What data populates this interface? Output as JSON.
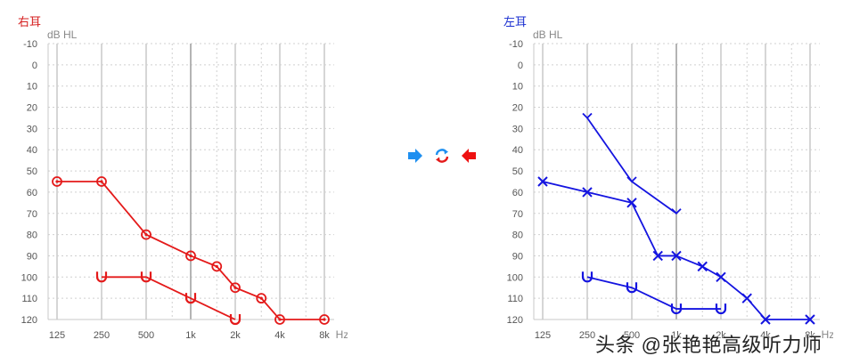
{
  "right_ear_title": "右耳",
  "left_ear_title": "左耳",
  "watermark": "头条 @张艳艳高级听力师",
  "colors": {
    "right": "#e41a1a",
    "left": "#1414e0"
  },
  "chart_data": [
    {
      "type": "line",
      "title": "右耳",
      "ylabel": "dB HL",
      "xlabel": "Hz",
      "y_inverted": true,
      "ylim": [
        -10,
        120
      ],
      "yticks": [
        -10,
        0,
        10,
        20,
        30,
        40,
        50,
        60,
        70,
        80,
        90,
        100,
        110,
        120
      ],
      "x_major": [
        "125",
        "250",
        "500",
        "1k",
        "2k",
        "4k",
        "8k"
      ],
      "x_minor_hz": [
        750,
        1500,
        3000,
        6000
      ],
      "grid": true,
      "series": [
        {
          "symbol": "circle",
          "points": [
            [
              125,
              55
            ],
            [
              250,
              55
            ],
            [
              500,
              80
            ],
            [
              1000,
              90
            ],
            [
              1500,
              95
            ],
            [
              2000,
              105
            ],
            [
              3000,
              110
            ],
            [
              4000,
              120
            ],
            [
              8000,
              120
            ]
          ]
        },
        {
          "symbol": "bone",
          "points": [
            [
              250,
              100
            ],
            [
              500,
              100
            ],
            [
              1000,
              110
            ],
            [
              2000,
              120
            ]
          ]
        }
      ]
    },
    {
      "type": "line",
      "title": "左耳",
      "ylabel": "dB HL",
      "xlabel": "Hz",
      "y_inverted": true,
      "ylim": [
        -10,
        120
      ],
      "yticks": [
        -10,
        0,
        10,
        20,
        30,
        40,
        50,
        60,
        70,
        80,
        90,
        100,
        110,
        120
      ],
      "x_major": [
        "125",
        "250",
        "500",
        "1k",
        "2k",
        "4k",
        "8k"
      ],
      "x_minor_hz": [
        750,
        1500,
        3000,
        6000
      ],
      "grid": true,
      "series": [
        {
          "symbol": "cross",
          "points": [
            [
              125,
              55
            ],
            [
              250,
              60
            ],
            [
              500,
              65
            ],
            [
              750,
              90
            ],
            [
              1000,
              90
            ],
            [
              1500,
              95
            ],
            [
              2000,
              100
            ],
            [
              3000,
              110
            ],
            [
              4000,
              120
            ],
            [
              8000,
              120
            ]
          ]
        },
        {
          "symbol": "chevron",
          "points": [
            [
              250,
              25
            ],
            [
              500,
              55
            ],
            [
              1000,
              70
            ]
          ]
        },
        {
          "symbol": "bone",
          "points": [
            [
              250,
              100
            ],
            [
              500,
              105
            ],
            [
              1000,
              115
            ],
            [
              2000,
              115
            ]
          ]
        }
      ]
    }
  ]
}
